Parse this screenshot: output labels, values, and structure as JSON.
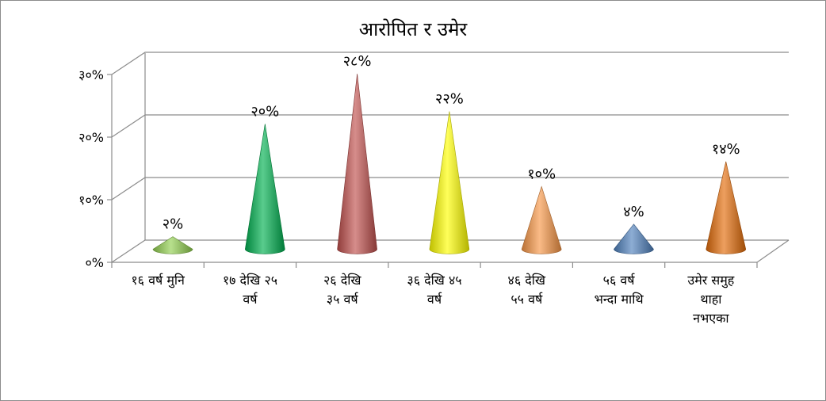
{
  "chart_data": {
    "type": "bar",
    "style": "3d-cone",
    "title": "आरोपित र उमेर",
    "xlabel": "",
    "ylabel": "",
    "ylim": [
      0,
      30
    ],
    "yticks": [
      "०%",
      "१०%",
      "२०%",
      "३०%"
    ],
    "grid": true,
    "legend": "none",
    "categories": [
      [
        "१६ वर्ष मुनि"
      ],
      [
        "१७ देखि २५",
        "वर्ष"
      ],
      [
        "२६ देखि",
        "३५ वर्ष"
      ],
      [
        "३६ देखि ४५",
        "वर्ष"
      ],
      [
        "४६ देखि",
        "५५ वर्ष"
      ],
      [
        "५६ वर्ष",
        "भन्दा माथि"
      ],
      [
        "उमेर समुह",
        "थाहा",
        "नभएका"
      ]
    ],
    "values": [
      2,
      20,
      28,
      22,
      10,
      4,
      14
    ],
    "data_labels": [
      "२%",
      "२०%",
      "२८%",
      "२२%",
      "१०%",
      "४%",
      "१४%"
    ],
    "colors": [
      "#92d050",
      "#00b050",
      "#c0504d",
      "#ffff00",
      "#f79646",
      "#4f81bd",
      "#e36c09"
    ]
  }
}
